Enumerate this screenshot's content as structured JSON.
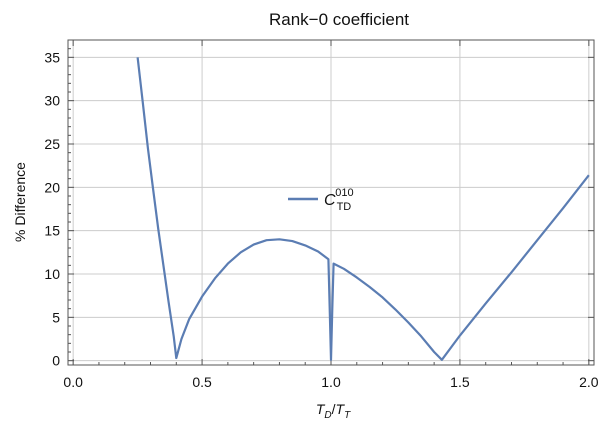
{
  "chart_data": {
    "type": "line",
    "title": "Rank−0 coefficient",
    "xlabel": {
      "base1": "T",
      "sub1": "D",
      "sep": "/",
      "base2": "T",
      "sub2": "T"
    },
    "ylabel": "% Difference",
    "xlim": [
      -0.02,
      2.02
    ],
    "ylim": [
      -0.5,
      37
    ],
    "xticks": [
      0.0,
      0.5,
      1.0,
      1.5,
      2.0
    ],
    "xtick_labels": [
      "0.0",
      "0.5",
      "1.0",
      "1.5",
      "2.0"
    ],
    "yticks": [
      0,
      5,
      10,
      15,
      20,
      25,
      30,
      35
    ],
    "ytick_labels": [
      "0",
      "5",
      "10",
      "15",
      "20",
      "25",
      "30",
      "35"
    ],
    "grid": true,
    "legend_position": "center",
    "colors": {
      "series": "#5b7db3",
      "grid": "#cccccc",
      "frame": "#555555"
    },
    "series": [
      {
        "legend": {
          "base": "C",
          "sub": "TD",
          "sup": "010"
        },
        "points": [
          [
            0.25,
            35.0
          ],
          [
            0.27,
            29.8
          ],
          [
            0.29,
            24.5
          ],
          [
            0.31,
            19.8
          ],
          [
            0.33,
            15.2
          ],
          [
            0.35,
            11.0
          ],
          [
            0.37,
            6.8
          ],
          [
            0.39,
            2.8
          ],
          [
            0.4,
            0.3
          ],
          [
            0.42,
            2.5
          ],
          [
            0.45,
            4.8
          ],
          [
            0.5,
            7.4
          ],
          [
            0.55,
            9.5
          ],
          [
            0.6,
            11.2
          ],
          [
            0.65,
            12.5
          ],
          [
            0.7,
            13.4
          ],
          [
            0.75,
            13.9
          ],
          [
            0.8,
            14.0
          ],
          [
            0.85,
            13.8
          ],
          [
            0.9,
            13.3
          ],
          [
            0.95,
            12.6
          ],
          [
            0.99,
            11.7
          ],
          [
            0.995,
            6.0
          ],
          [
            1.0,
            0.1
          ],
          [
            1.005,
            6.0
          ],
          [
            1.01,
            11.2
          ],
          [
            1.05,
            10.6
          ],
          [
            1.1,
            9.6
          ],
          [
            1.15,
            8.5
          ],
          [
            1.2,
            7.3
          ],
          [
            1.25,
            5.9
          ],
          [
            1.3,
            4.4
          ],
          [
            1.35,
            2.8
          ],
          [
            1.4,
            1.0
          ],
          [
            1.43,
            0.1
          ],
          [
            1.5,
            2.9
          ],
          [
            1.6,
            6.6
          ],
          [
            1.7,
            10.2
          ],
          [
            1.8,
            13.9
          ],
          [
            1.9,
            17.6
          ],
          [
            2.0,
            21.4
          ]
        ]
      }
    ]
  }
}
